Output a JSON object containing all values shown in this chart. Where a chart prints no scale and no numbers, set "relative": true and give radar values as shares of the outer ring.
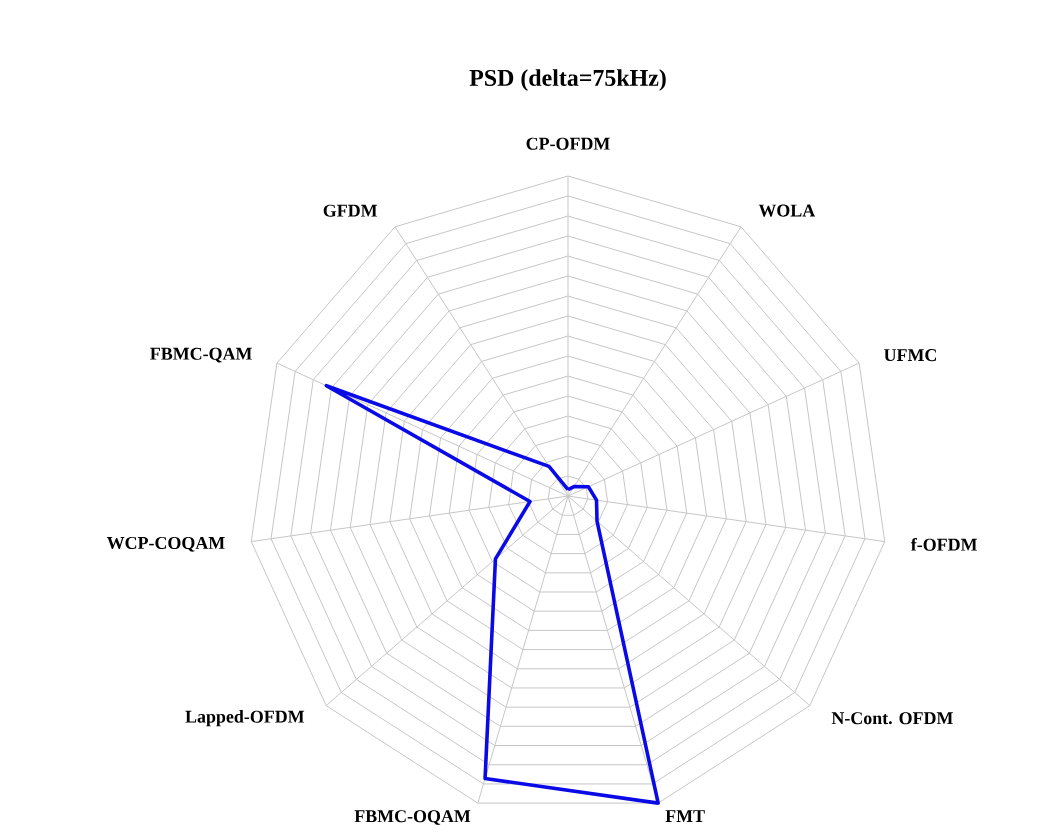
{
  "chart_data": {
    "type": "radar",
    "title": "PSD (delta=75kHz)",
    "relative": true,
    "grid": true,
    "categories": [
      "CP-OFDM",
      "WOLA",
      "UFMC",
      "f-OFDM",
      "N-Cont. OFDM",
      "FMT",
      "FBMC-OQAM",
      "Lapped-OFDM",
      "WCP-COQAM",
      "FBMC-QAM",
      "GFDM"
    ],
    "series": [
      {
        "color": "#0a0ae6",
        "values": [
          0.02,
          0.035,
          0.07,
          0.09,
          0.12,
          1.0,
          0.92,
          0.3,
          0.12,
          0.83,
          0.11
        ]
      }
    ]
  }
}
